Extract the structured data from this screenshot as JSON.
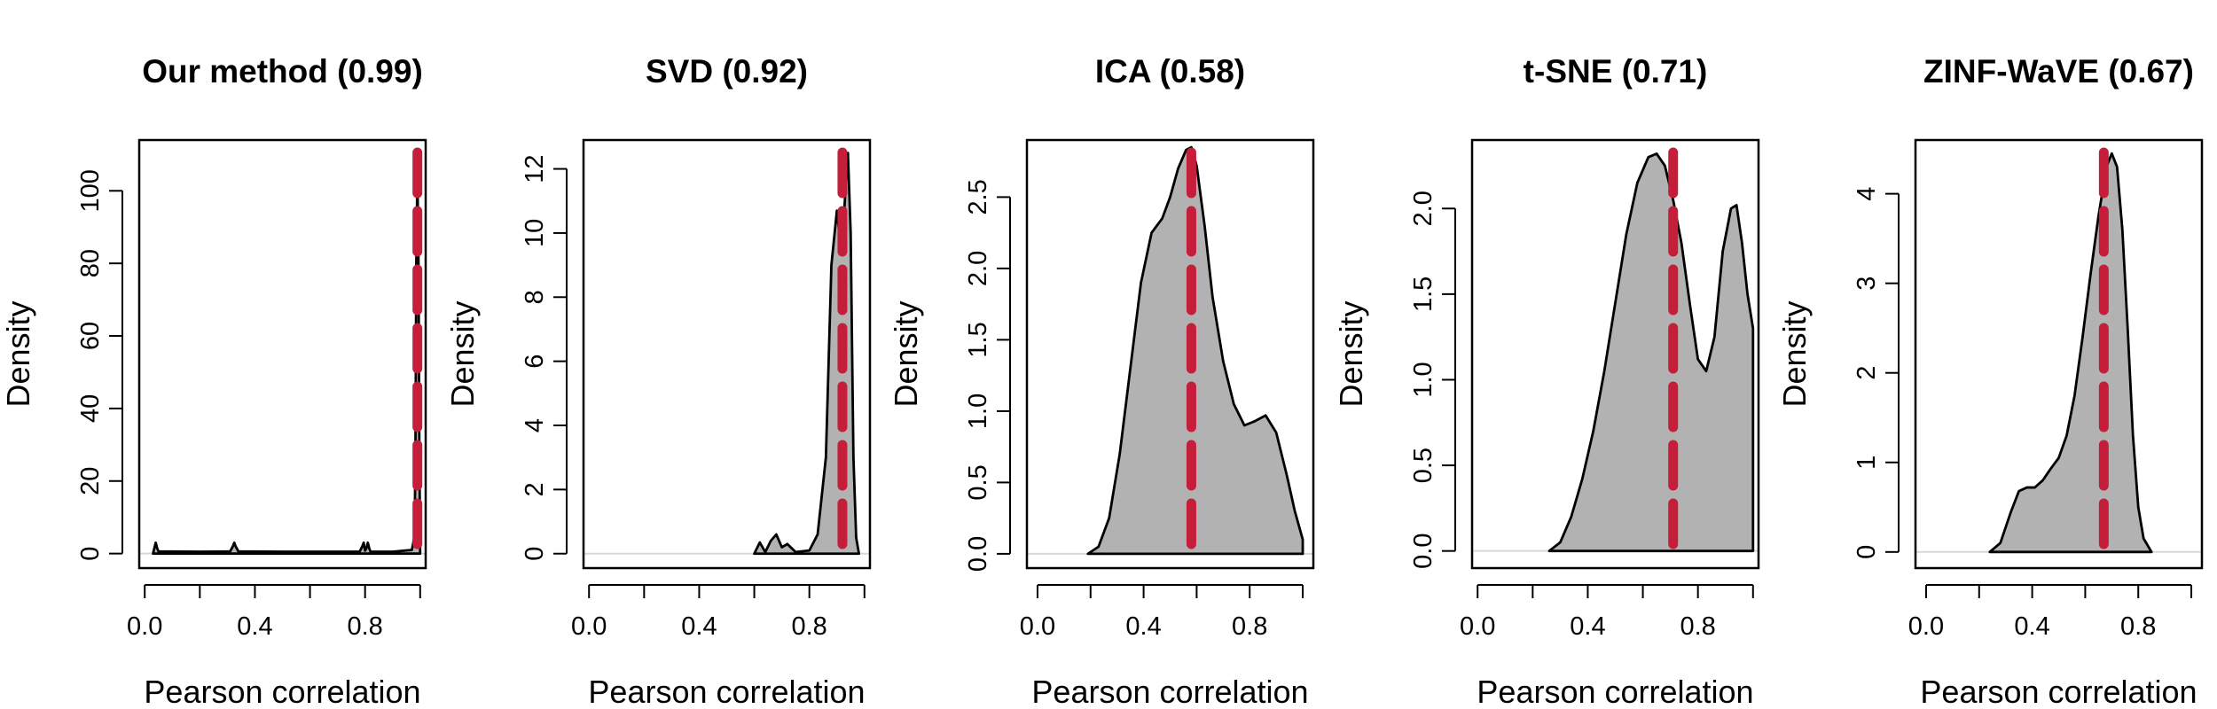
{
  "chart_data": [
    {
      "type": "area",
      "title": "Our method (0.99)",
      "xlabel": "Pearson correlation",
      "ylabel": "Density",
      "xlim": [
        -0.02,
        1.02
      ],
      "ylim": [
        -4,
        114
      ],
      "xticks": [
        0.0,
        0.4,
        0.8
      ],
      "xtick_labels": [
        "0.0",
        "0.4",
        "0.8"
      ],
      "xticks_unlabeled": [
        0.2,
        0.6,
        1.0
      ],
      "yticks": [
        0,
        20,
        40,
        60,
        80,
        100
      ],
      "ytick_labels": [
        "0",
        "20",
        "40",
        "60",
        "80",
        "100"
      ],
      "mean": 0.99,
      "x": [
        0.03,
        0.035,
        0.04,
        0.045,
        0.05,
        0.2,
        0.31,
        0.32,
        0.325,
        0.33,
        0.34,
        0.5,
        0.78,
        0.79,
        0.795,
        0.8,
        0.805,
        0.81,
        0.815,
        0.82,
        0.9,
        0.97,
        0.98,
        0.983,
        0.986,
        0.99,
        0.994,
        0.997,
        1.0
      ],
      "y": [
        0,
        1.5,
        3,
        1.5,
        0.6,
        0.5,
        0.6,
        2,
        3,
        2,
        0.6,
        0.5,
        0.5,
        2,
        3,
        0.8,
        1.5,
        3,
        1.5,
        0.5,
        0.5,
        1,
        5,
        30,
        80,
        105,
        80,
        30,
        0
      ]
    },
    {
      "type": "area",
      "title": "SVD (0.92)",
      "xlabel": "Pearson correlation",
      "ylabel": "Density",
      "xlim": [
        -0.02,
        1.02
      ],
      "ylim": [
        -0.45,
        12.9
      ],
      "xticks": [
        0.0,
        0.4,
        0.8
      ],
      "xtick_labels": [
        "0.0",
        "0.4",
        "0.8"
      ],
      "xticks_unlabeled": [
        0.2,
        0.6,
        1.0
      ],
      "yticks": [
        0,
        2,
        4,
        6,
        8,
        10,
        12
      ],
      "ytick_labels": [
        "0",
        "2",
        "4",
        "6",
        "8",
        "10",
        "12"
      ],
      "mean": 0.92,
      "x": [
        0.6,
        0.62,
        0.64,
        0.66,
        0.68,
        0.7,
        0.72,
        0.75,
        0.8,
        0.83,
        0.86,
        0.88,
        0.9,
        0.915,
        0.925,
        0.94,
        0.95,
        0.96,
        0.97,
        0.98
      ],
      "y": [
        0,
        0.35,
        0.05,
        0.4,
        0.6,
        0.2,
        0.3,
        0.05,
        0.1,
        0.6,
        3.0,
        9.0,
        10.7,
        9.5,
        10.5,
        12.5,
        10.0,
        3.0,
        0.5,
        0
      ]
    },
    {
      "type": "area",
      "title": "ICA (0.58)",
      "xlabel": "Pearson correlation",
      "ylabel": "Density",
      "xlim": [
        -0.04,
        1.04
      ],
      "ylim": [
        -0.1,
        2.9
      ],
      "xticks": [
        0.0,
        0.4,
        0.8
      ],
      "xtick_labels": [
        "0.0",
        "0.4",
        "0.8"
      ],
      "xticks_unlabeled": [
        0.2,
        0.6,
        1.0
      ],
      "yticks": [
        0.0,
        0.5,
        1.0,
        1.5,
        2.0,
        2.5
      ],
      "ytick_labels": [
        "0.0",
        "0.5",
        "1.0",
        "1.5",
        "2.0",
        "2.5"
      ],
      "mean": 0.58,
      "x": [
        0.19,
        0.23,
        0.27,
        0.31,
        0.35,
        0.39,
        0.43,
        0.47,
        0.5,
        0.53,
        0.56,
        0.58,
        0.6,
        0.63,
        0.66,
        0.7,
        0.74,
        0.78,
        0.82,
        0.86,
        0.9,
        0.94,
        0.97,
        1.0
      ],
      "y": [
        0,
        0.05,
        0.25,
        0.7,
        1.3,
        1.9,
        2.25,
        2.35,
        2.5,
        2.7,
        2.83,
        2.85,
        2.72,
        2.3,
        1.8,
        1.35,
        1.05,
        0.9,
        0.93,
        0.97,
        0.85,
        0.55,
        0.3,
        0.1
      ]
    },
    {
      "type": "area",
      "title": "t-SNE (0.71)",
      "xlabel": "Pearson correlation",
      "ylabel": "Density",
      "xlim": [
        -0.02,
        1.02
      ],
      "ylim": [
        -0.1,
        2.4
      ],
      "xticks": [
        0.0,
        0.4,
        0.8
      ],
      "xtick_labels": [
        "0.0",
        "0.4",
        "0.8"
      ],
      "xticks_unlabeled": [
        0.2,
        0.6,
        1.0
      ],
      "yticks": [
        0.0,
        0.5,
        1.0,
        1.5,
        2.0
      ],
      "ytick_labels": [
        "0.0",
        "0.5",
        "1.0",
        "1.5",
        "2.0"
      ],
      "mean": 0.71,
      "x": [
        0.26,
        0.3,
        0.34,
        0.38,
        0.42,
        0.46,
        0.5,
        0.54,
        0.58,
        0.62,
        0.65,
        0.68,
        0.71,
        0.74,
        0.77,
        0.8,
        0.83,
        0.86,
        0.89,
        0.92,
        0.94,
        0.96,
        0.98,
        1.0
      ],
      "y": [
        0,
        0.05,
        0.2,
        0.42,
        0.7,
        1.05,
        1.45,
        1.85,
        2.15,
        2.3,
        2.32,
        2.25,
        2.05,
        1.8,
        1.45,
        1.12,
        1.05,
        1.25,
        1.75,
        2.0,
        2.02,
        1.8,
        1.5,
        1.3
      ]
    },
    {
      "type": "area",
      "title": "ZINF-WaVE (0.67)",
      "xlabel": "Pearson correlation",
      "ylabel": "Density",
      "xlim": [
        -0.04,
        1.04
      ],
      "ylim": [
        -0.18,
        4.6
      ],
      "xticks": [
        0.0,
        0.4,
        0.8
      ],
      "xtick_labels": [
        "0.0",
        "0.4",
        "0.8"
      ],
      "xticks_unlabeled": [
        0.2,
        0.6,
        1.0
      ],
      "yticks": [
        0,
        1,
        2,
        3,
        4
      ],
      "ytick_labels": [
        "0",
        "1",
        "2",
        "3",
        "4"
      ],
      "mean": 0.67,
      "x": [
        0.24,
        0.28,
        0.32,
        0.35,
        0.38,
        0.41,
        0.44,
        0.47,
        0.5,
        0.53,
        0.56,
        0.59,
        0.62,
        0.65,
        0.68,
        0.7,
        0.72,
        0.74,
        0.76,
        0.78,
        0.8,
        0.82,
        0.85
      ],
      "y": [
        0,
        0.1,
        0.45,
        0.68,
        0.72,
        0.72,
        0.8,
        0.93,
        1.05,
        1.3,
        1.75,
        2.4,
        3.1,
        3.75,
        4.3,
        4.45,
        4.3,
        3.6,
        2.5,
        1.3,
        0.5,
        0.15,
        0
      ]
    }
  ],
  "colors": {
    "fill": "#b2b2b2",
    "outline": "#000000",
    "mean_line": "#c41e3a"
  }
}
